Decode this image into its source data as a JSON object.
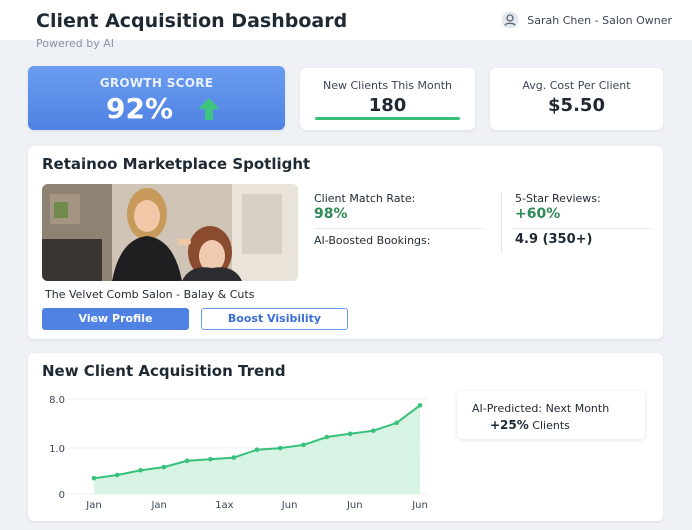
{
  "header": {
    "title": "Client Acquisition Dashboard",
    "powered_by": "Powered by AI",
    "user": "Sarah Chen - Salon Owner"
  },
  "growth": {
    "label": "GROWTH SCORE",
    "value": "92%",
    "arrow_icon": "arrow-up-icon",
    "arrow_color": "#3ec47f"
  },
  "metrics": [
    {
      "label": "New Clients This Month",
      "value": "180",
      "progress": 1.0
    },
    {
      "label": "Avg. Cost Per Client",
      "value": "$5.50"
    }
  ],
  "spotlight": {
    "title": "Retainoo Marketplace Spotlight",
    "salon_name": "The Velvet Comb Salon - Balay & Cuts",
    "view_profile": "View Profile",
    "boost_visibility": "Boost Visibility",
    "stats": {
      "match_rate_label": "Client Match Rate:",
      "match_rate_value": "98%",
      "ai_bookings_label": "AI-Boosted Bookings:",
      "reviews_label": "5-Star Reviews:",
      "reviews_value": "+60%",
      "rating_value": "4.9 (350+)"
    }
  },
  "trend": {
    "title": "New Client Acquisition Trend",
    "prediction_label": "AI-Predicted: Next Month",
    "prediction_value": "+25%",
    "prediction_suffix": "Clients"
  },
  "chart_data": {
    "type": "area",
    "title": "New Client Acquisition Trend",
    "ytick_labels": [
      "8.0",
      "1.0",
      "0"
    ],
    "xtick_labels": [
      "Jan",
      "Jan",
      "1ax",
      "Jun",
      "Jun",
      "Jun"
    ],
    "series": [
      {
        "values": [
          1.0,
          1.2,
          1.5,
          1.7,
          2.1,
          2.2,
          2.3,
          2.8,
          2.9,
          3.1,
          3.6,
          3.8,
          4.0,
          4.5,
          5.6
        ]
      }
    ],
    "ylim": [
      0,
      6
    ],
    "color": "#36c07a",
    "fill": "#d6f3e3"
  }
}
